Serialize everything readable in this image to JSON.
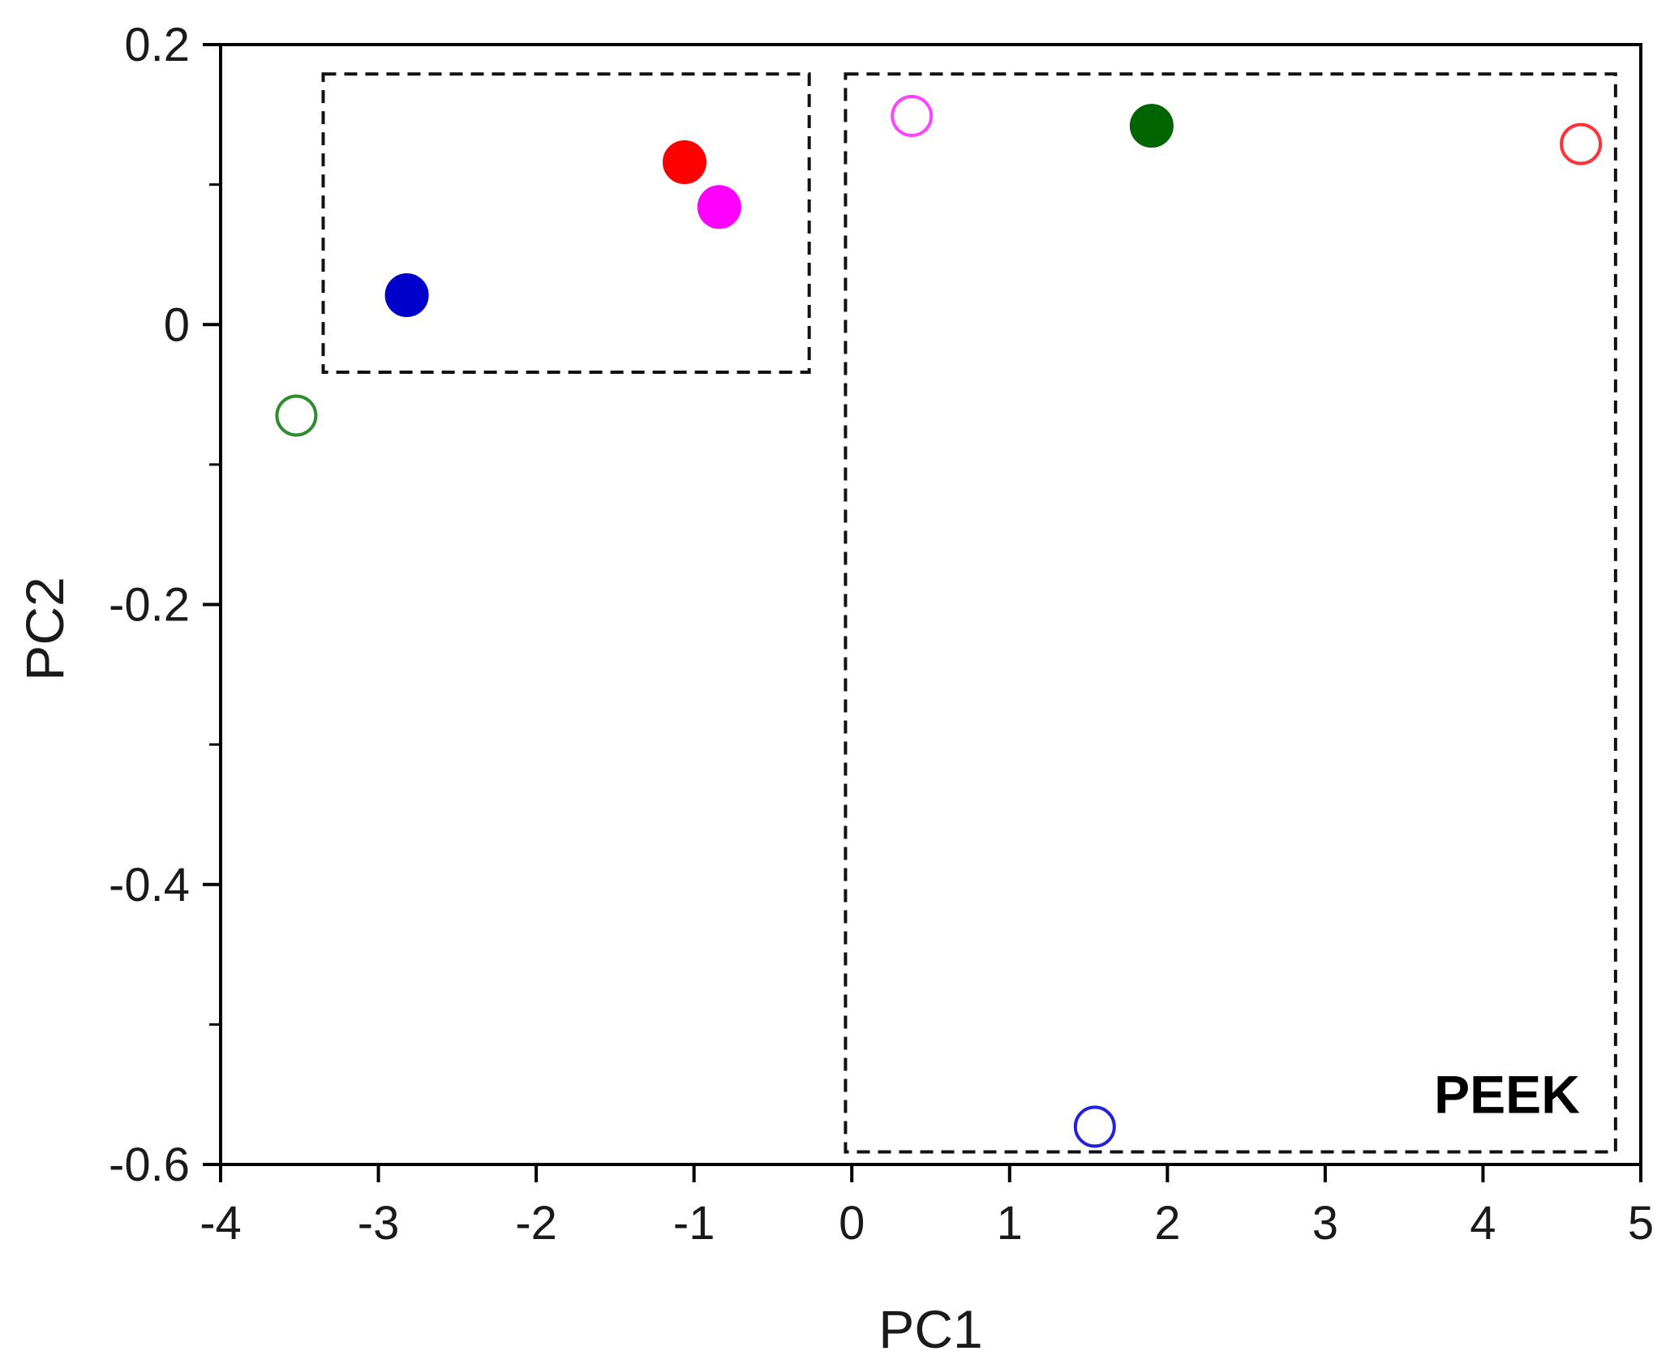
{
  "chart_data": {
    "type": "scatter",
    "title": "",
    "xlabel": "PC1",
    "ylabel": "PC2",
    "xlim": [
      -4,
      5
    ],
    "ylim": [
      -0.6,
      0.2
    ],
    "x_ticks": [
      "-4",
      "-3",
      "-2",
      "-1",
      "0",
      "1",
      "2",
      "3",
      "4",
      "5"
    ],
    "x_tick_values": [
      -4,
      -3,
      -2,
      -1,
      0,
      1,
      2,
      3,
      4,
      5
    ],
    "y_ticks": [
      "0.2",
      "0",
      "-0.2",
      "-0.4",
      "-0.6"
    ],
    "y_tick_values": [
      0.2,
      0,
      -0.2,
      -0.4,
      -0.6
    ],
    "grid": false,
    "points": [
      {
        "x": -3.52,
        "y": -0.065,
        "color": "#2e8b2e",
        "filled": false
      },
      {
        "x": -2.82,
        "y": 0.021,
        "color": "#0000cc",
        "filled": true
      },
      {
        "x": -1.06,
        "y": 0.116,
        "color": "#ff0000",
        "filled": true
      },
      {
        "x": -0.84,
        "y": 0.084,
        "color": "#ff00ff",
        "filled": true
      },
      {
        "x": 0.38,
        "y": 0.149,
        "color": "#ff44ff",
        "filled": false
      },
      {
        "x": 1.9,
        "y": 0.142,
        "color": "#006400",
        "filled": true
      },
      {
        "x": 1.54,
        "y": -0.573,
        "color": "#2222dd",
        "filled": false
      },
      {
        "x": 4.62,
        "y": 0.129,
        "color": "#ff3333",
        "filled": false
      }
    ],
    "groups": [
      {
        "x_range": [
          -3.35,
          -0.27
        ],
        "y_range": [
          -0.034,
          0.179
        ],
        "label": ""
      },
      {
        "x_range": [
          -0.04,
          4.84
        ],
        "y_range": [
          -0.591,
          0.179
        ],
        "label": "PEEK"
      }
    ]
  }
}
